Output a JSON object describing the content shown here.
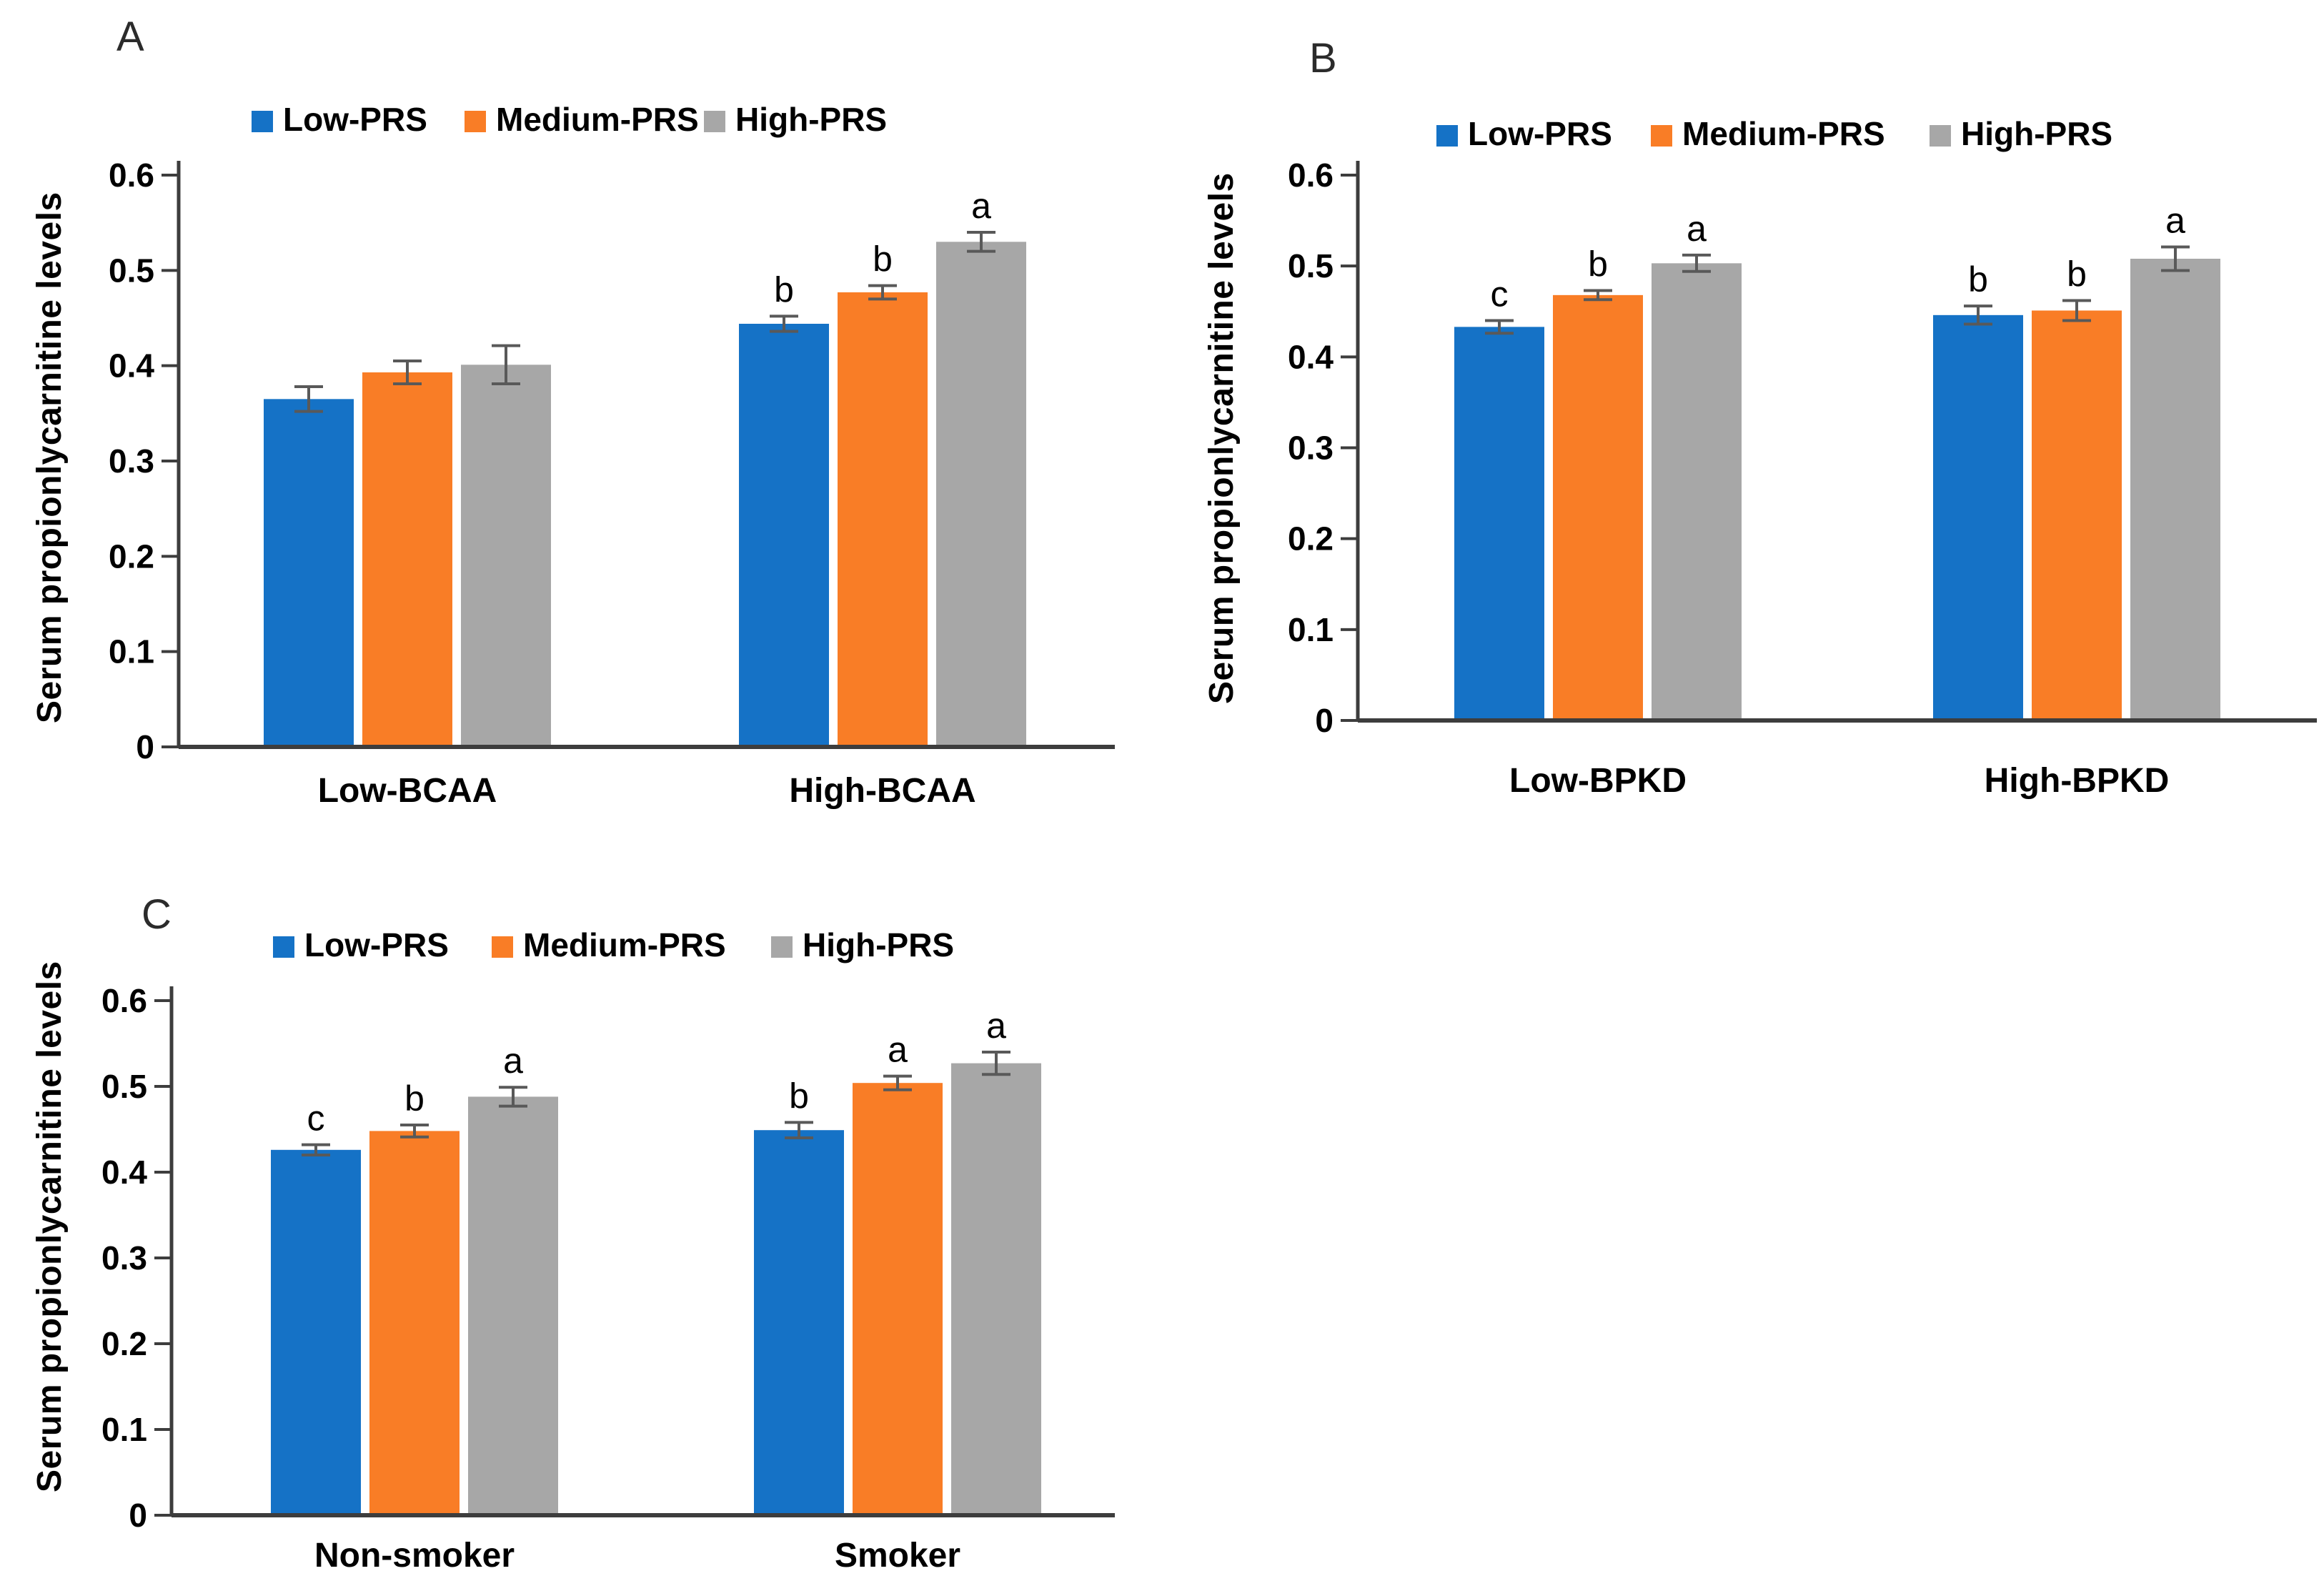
{
  "figure": {
    "description_visible_text_only": "Three-panel bar figure comparing serum propionlycarnitine levels across PRS groups",
    "colors": {
      "series_blue": "#1572C6",
      "series_orange": "#F97D26",
      "series_gray": "#A7A7A7",
      "axis": "#3d3d3d",
      "error_bar": "#595959",
      "background": "#ffffff"
    }
  },
  "chart_data": [
    {
      "type": "bar",
      "panel": "A",
      "title": "",
      "xlabel": "",
      "ylabel": "Serum propionlycarnitine levels",
      "ylim": [
        0,
        0.6
      ],
      "yticks": [
        "0",
        "0.1",
        "0.2",
        "0.3",
        "0.4",
        "0.5",
        "0.6"
      ],
      "grid": false,
      "legend_position": "top",
      "categories": [
        "Low-BCAA",
        "High-BCAA"
      ],
      "series": [
        {
          "name": "Low-PRS",
          "color": "#1572C6",
          "values": [
            0.365,
            0.444
          ],
          "errors": [
            0.013,
            0.008
          ],
          "sig_letters": [
            "",
            "b"
          ]
        },
        {
          "name": "Medium-PRS",
          "color": "#F97D26",
          "values": [
            0.393,
            0.477
          ],
          "errors": [
            0.012,
            0.007
          ],
          "sig_letters": [
            "",
            "b"
          ]
        },
        {
          "name": "High-PRS",
          "color": "#A7A7A7",
          "values": [
            0.401,
            0.53
          ],
          "errors": [
            0.02,
            0.01
          ],
          "sig_letters": [
            "",
            "a"
          ]
        }
      ]
    },
    {
      "type": "bar",
      "panel": "B",
      "title": "",
      "xlabel": "",
      "ylabel": "Serum propionlycarnitine levels",
      "ylim": [
        0,
        0.6
      ],
      "yticks": [
        "0",
        "0.1",
        "0.2",
        "0.3",
        "0.4",
        "0.5",
        "0.6"
      ],
      "grid": false,
      "legend_position": "top",
      "categories": [
        "Low-BPKD",
        "High-BPKD"
      ],
      "series": [
        {
          "name": "Low-PRS",
          "color": "#1572C6",
          "values": [
            0.433,
            0.446
          ],
          "errors": [
            0.007,
            0.01
          ],
          "sig_letters": [
            "c",
            "b"
          ]
        },
        {
          "name": "Medium-PRS",
          "color": "#F97D26",
          "values": [
            0.468,
            0.451
          ],
          "errors": [
            0.005,
            0.011
          ],
          "sig_letters": [
            "b",
            "b"
          ]
        },
        {
          "name": "High-PRS",
          "color": "#A7A7A7",
          "values": [
            0.503,
            0.508
          ],
          "errors": [
            0.009,
            0.013
          ],
          "sig_letters": [
            "a",
            "a"
          ]
        }
      ]
    },
    {
      "type": "bar",
      "panel": "C",
      "title": "",
      "xlabel": "",
      "ylabel": "Serum propionlycarnitine levels",
      "ylim": [
        0,
        0.6
      ],
      "yticks": [
        "0",
        "0.1",
        "0.2",
        "0.3",
        "0.4",
        "0.5",
        "0.6"
      ],
      "grid": false,
      "legend_position": "top",
      "categories": [
        "Non-smoker",
        "Smoker"
      ],
      "series": [
        {
          "name": "Low-PRS",
          "color": "#1572C6",
          "values": [
            0.426,
            0.449
          ],
          "errors": [
            0.006,
            0.009
          ],
          "sig_letters": [
            "c",
            "b"
          ]
        },
        {
          "name": "Medium-PRS",
          "color": "#F97D26",
          "values": [
            0.448,
            0.504
          ],
          "errors": [
            0.007,
            0.008
          ],
          "sig_letters": [
            "b",
            "a"
          ]
        },
        {
          "name": "High-PRS",
          "color": "#A7A7A7",
          "values": [
            0.488,
            0.527
          ],
          "errors": [
            0.011,
            0.013
          ],
          "sig_letters": [
            "a",
            "a"
          ]
        }
      ]
    }
  ]
}
